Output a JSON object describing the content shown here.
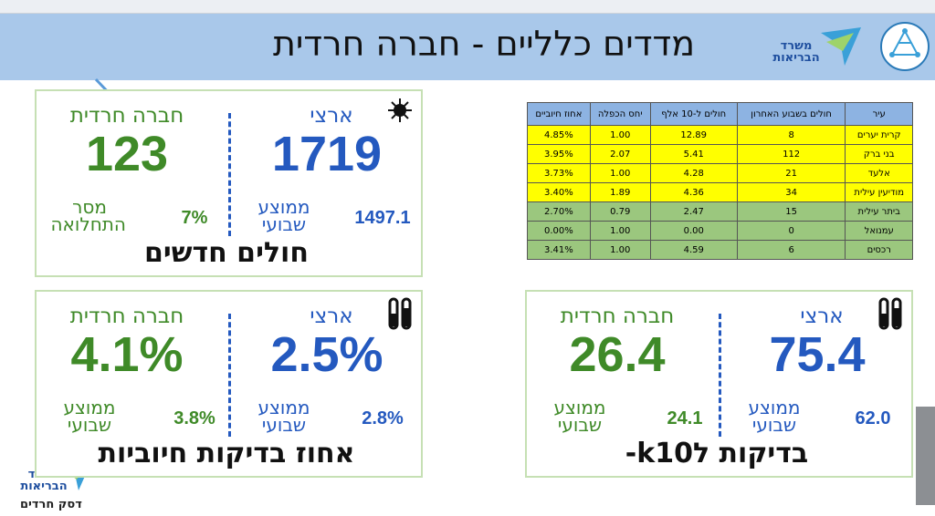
{
  "header": {
    "title": "מדדים כלליים - חברה חרדית",
    "logo_text": "משרד הבריאות"
  },
  "cards": [
    {
      "national_label": "ארצי",
      "national_value": "1719",
      "sector_label": "חברה חרדית",
      "sector_value": "123",
      "national_sub_label": "ממוצע שבועי",
      "national_sub_value": "1497.1",
      "sector_sub_label": "מסר התחלואה",
      "sector_sub_value": "7%",
      "title": "חולים חדשים"
    },
    {
      "national_label": "ארצי",
      "national_value": "2.5%",
      "sector_label": "חברה חרדית",
      "sector_value": "4.1%",
      "national_sub_label": "ממוצע שבועי",
      "national_sub_value": "2.8%",
      "sector_sub_label": "ממוצע שבועי",
      "sector_sub_value": "3.8%",
      "title": "אחוז בדיקות חיוביות"
    },
    {
      "national_label": "ארצי",
      "national_value": "75.4",
      "sector_label": "חברה חרדית",
      "sector_value": "26.4",
      "national_sub_label": "ממוצע שבועי",
      "national_sub_value": "62.0",
      "sector_sub_label": "ממוצע שבועי",
      "sector_sub_value": "24.1",
      "title": "בדיקות לk10-"
    }
  ],
  "table": {
    "headers": [
      "עיר",
      "חולים בשבוע האחרון",
      "חולים ל-10 אלף",
      "יחס הכפלה",
      "אחוז חיוביים"
    ],
    "header_color": "#8db3e2",
    "rows": [
      [
        "קרית יערים",
        "8",
        "12.89",
        "1.00",
        "4.85%"
      ],
      [
        "בני ברק",
        "112",
        "5.41",
        "2.07",
        "3.95%"
      ],
      [
        "אלעד",
        "21",
        "4.28",
        "1.00",
        "3.73%"
      ],
      [
        "מודיעין עילית",
        "34",
        "4.36",
        "1.89",
        "3.40%"
      ],
      [
        "ביתר עילית",
        "15",
        "2.47",
        "0.79",
        "2.70%"
      ],
      [
        "עמנואל",
        "0",
        "0.00",
        "1.00",
        "0.00%"
      ],
      [
        "רכסים",
        "6",
        "4.59",
        "1.00",
        "3.41%"
      ]
    ],
    "row_colors": [
      "#ffff00",
      "#ffff00",
      "#ffff00",
      "#ffff00",
      "#9bc77e",
      "#9bc77e",
      "#9bc77e"
    ]
  },
  "footer": {
    "logo_text": "משרד הבריאות",
    "desk": "דסק חרדים"
  }
}
